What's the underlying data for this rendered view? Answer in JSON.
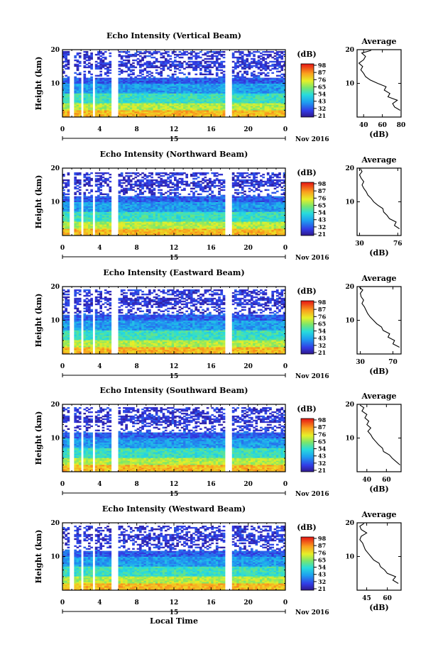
{
  "chart_data": {
    "type": "heatmap",
    "x_axis_label": "Local Time",
    "date_label": "Nov 2016",
    "day_label": "15",
    "x_ticks": [
      "0",
      "4",
      "8",
      "12",
      "16",
      "20",
      "0"
    ],
    "x_range": [
      0,
      24
    ],
    "y_range": [
      0,
      20
    ],
    "y_label": "Height (km)",
    "y_ticks": [
      "10",
      "20"
    ],
    "data_gaps_hours": [
      [
        0.85,
        1.3
      ],
      [
        1.9,
        2.3
      ],
      [
        3.2,
        3.5
      ],
      [
        5.3,
        6.0
      ],
      [
        17.5,
        18.2
      ]
    ],
    "colorbar_unit": "(dB)",
    "profile_title": "Average",
    "profile_xlabel": "(dB)",
    "panels": [
      {
        "title": "Echo Intensity (Vertical Beam)",
        "echo_top_km": 19.5,
        "colorbar_ticks": [
          "98",
          "87",
          "76",
          "65",
          "54",
          "43",
          "32",
          "21"
        ],
        "profile": {
          "x_ticks": [
            "40",
            "60",
            "80"
          ],
          "x_range": [
            33,
            80
          ],
          "heights_km": [
            2,
            3,
            4,
            5,
            6,
            7,
            8,
            9,
            10,
            11,
            12,
            13,
            14,
            15,
            16,
            17,
            18,
            19,
            19.8
          ],
          "values_db": [
            79,
            73,
            71,
            76,
            66,
            68,
            62,
            64,
            55,
            47,
            42,
            40,
            37,
            39,
            35,
            40,
            42,
            38,
            48
          ]
        }
      },
      {
        "title": "Echo Intensity (Northward Beam)",
        "echo_top_km": 18.8,
        "colorbar_ticks": [
          "98",
          "87",
          "76",
          "65",
          "54",
          "43",
          "32",
          "21"
        ],
        "profile": {
          "x_ticks": [
            "30",
            "76"
          ],
          "x_range": [
            27,
            80
          ],
          "heights_km": [
            2,
            3,
            4,
            5,
            6,
            7,
            8,
            9,
            10,
            11,
            12,
            13,
            14,
            15,
            16,
            17,
            18,
            19,
            19.8
          ],
          "values_db": [
            78,
            72,
            74,
            66,
            63,
            59,
            58,
            52,
            47,
            44,
            40,
            38,
            35,
            33,
            35,
            32,
            30,
            33,
            31
          ]
        }
      },
      {
        "title": "Echo Intensity (Eastward Beam)",
        "echo_top_km": 19.2,
        "colorbar_ticks": [
          "98",
          "87",
          "76",
          "65",
          "54",
          "43",
          "32",
          "21"
        ],
        "profile": {
          "x_ticks": [
            "30",
            "70"
          ],
          "x_range": [
            26,
            80
          ],
          "heights_km": [
            2,
            3,
            4,
            5,
            6,
            7,
            8,
            9,
            10,
            11,
            12,
            13,
            14,
            15,
            16,
            17,
            18,
            19,
            19.8
          ],
          "values_db": [
            78,
            70,
            72,
            64,
            66,
            58,
            56,
            50,
            46,
            42,
            39,
            37,
            35,
            32,
            34,
            31,
            30,
            33,
            29
          ]
        }
      },
      {
        "title": "Echo Intensity (Southward Beam)",
        "echo_top_km": 19.2,
        "colorbar_ticks": [
          "98",
          "87",
          "76",
          "65",
          "54",
          "43",
          "32",
          "21"
        ],
        "profile": {
          "x_ticks": [
            "40",
            "60"
          ],
          "x_range": [
            30,
            75
          ],
          "heights_km": [
            2,
            3,
            4,
            5,
            6,
            7,
            8,
            9,
            10,
            11,
            12,
            13,
            14,
            15,
            16,
            17,
            18,
            19,
            19.8
          ],
          "values_db": [
            74,
            70,
            66,
            63,
            57,
            56,
            52,
            49,
            46,
            44,
            41,
            44,
            40,
            42,
            38,
            40,
            35,
            37,
            33
          ]
        }
      },
      {
        "title": "Echo Intensity (Westward Beam)",
        "echo_top_km": 19.2,
        "colorbar_ticks": [
          "98",
          "87",
          "76",
          "65",
          "54",
          "43",
          "32",
          "21"
        ],
        "profile": {
          "x_ticks": [
            "45",
            "60"
          ],
          "x_range": [
            38,
            70
          ],
          "heights_km": [
            2,
            3,
            4,
            5,
            6,
            7,
            8,
            9,
            10,
            11,
            12,
            13,
            14,
            15,
            16,
            17,
            18,
            19,
            19.8
          ],
          "values_db": [
            68,
            64,
            66,
            60,
            58,
            55,
            54,
            50,
            48,
            46,
            44,
            43,
            42,
            40,
            41,
            45,
            41,
            40,
            43
          ]
        }
      }
    ]
  }
}
